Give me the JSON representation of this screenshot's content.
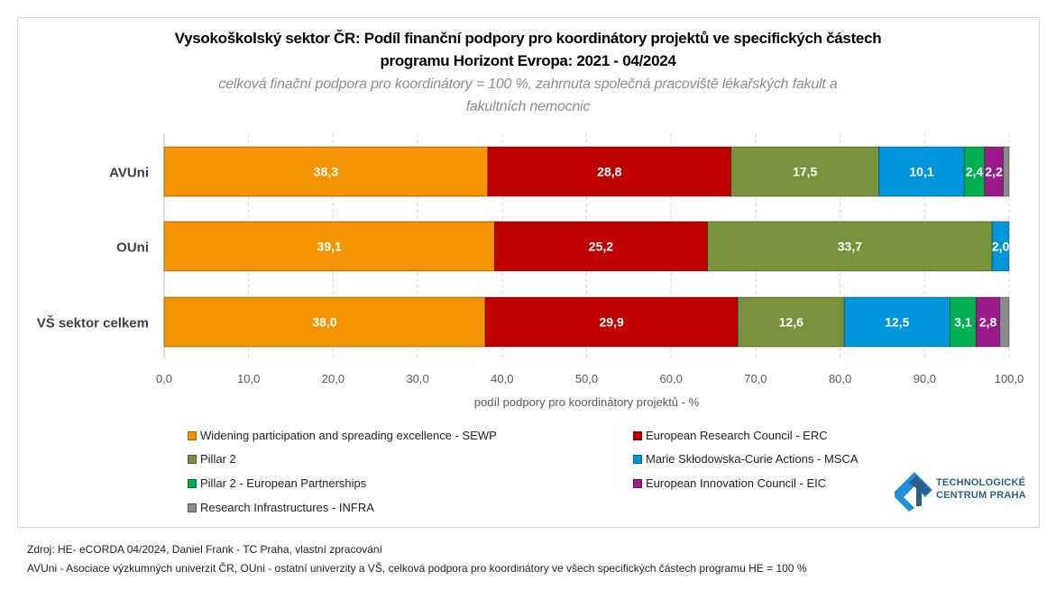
{
  "chart_data": {
    "type": "bar",
    "orientation": "horizontal",
    "stacked": true,
    "title": "Vysokoškolský sektor ČR: Podíl finanční podpory pro koordinátory projektů ve specifických částech programu Horizont Evropa: 2021 - 04/2024",
    "title_lines": [
      "Vysokoškolský sektor ČR: Podíl finanční podpory pro koordinátory projektů ve specifických částech",
      "programu Horizont Evropa: 2021 - 04/2024"
    ],
    "subtitle_lines": [
      "celková finační podpora pro koordinátory = 100 %, zahrnuta společná pracoviště lékařských fakult a",
      "fakultních nemocnic"
    ],
    "xlabel": "podíl podpory pro koordinátory projektů - %",
    "ylabel": "",
    "xlim": [
      0,
      100
    ],
    "xticks": [
      "0,0",
      "10,0",
      "20,0",
      "30,0",
      "40,0",
      "50,0",
      "60,0",
      "70,0",
      "80,0",
      "90,0",
      "100,0"
    ],
    "grid": "vertical-dashed",
    "legend_position": "bottom",
    "categories": [
      "AVUni",
      "OUni",
      "VŠ sektor celkem"
    ],
    "series": [
      {
        "name": "Widening participation and spreading excellence -  SEWP",
        "color": "#F39400",
        "values": [
          38.3,
          39.1,
          38.0
        ],
        "labels": [
          "38,3",
          "39,1",
          "38,0"
        ]
      },
      {
        "name": "European Research Council - ERC",
        "color": "#C00000",
        "values": [
          28.8,
          25.2,
          29.9
        ],
        "labels": [
          "28,8",
          "25,2",
          "29,9"
        ]
      },
      {
        "name": "Pillar 2",
        "color": "#77933C",
        "values": [
          17.5,
          33.7,
          12.6
        ],
        "labels": [
          "17,5",
          "33,7",
          "12,6"
        ]
      },
      {
        "name": "Marie Skłodowska-Curie Actions - MSCA",
        "color": "#0096DC",
        "values": [
          10.1,
          2.0,
          12.5
        ],
        "labels": [
          "10,1",
          "2,0",
          "12,5"
        ]
      },
      {
        "name": "Pillar 2 - European Partnerships",
        "color": "#00B050",
        "values": [
          2.4,
          0.0,
          3.1
        ],
        "labels": [
          "2,4",
          "",
          "3,1"
        ]
      },
      {
        "name": "European Innovation Council - EIC",
        "color": "#9B1B8A",
        "values": [
          2.2,
          0.0,
          2.8
        ],
        "labels": [
          "2,2",
          "",
          "2,8"
        ]
      },
      {
        "name": "Research Infrastructures - INFRA",
        "color": "#8C8C8C",
        "values": [
          0.7,
          0.0,
          1.1
        ],
        "labels": [
          "",
          "",
          ""
        ]
      }
    ]
  },
  "legend_order": [
    0,
    1,
    2,
    3,
    4,
    5,
    6
  ],
  "logo": {
    "line1": "TECHNOLOGICKÉ",
    "line2": "CENTRUM PRAHA",
    "name_icon": "tc-praha-logo-icon"
  },
  "footer": {
    "source": "Zdroj: HE- eCORDA 04/2024, Daniel Frank - TC Praha, vlastní zpracování",
    "note": "AVUni - Asociace výzkumných univerzit ČR, OUni - ostatní univerzity a VŠ, celková podpora pro koordinátory ve všech specifických částech programu HE = 100 %"
  }
}
